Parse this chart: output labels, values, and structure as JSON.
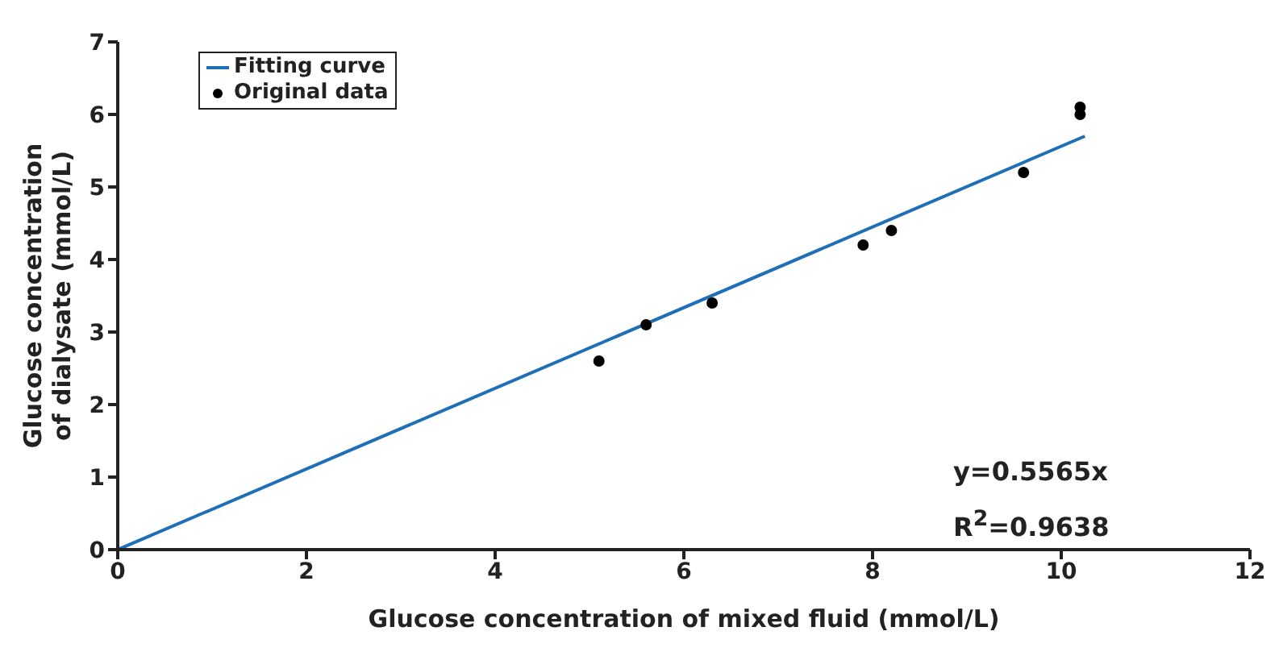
{
  "chart_data": {
    "type": "scatter",
    "xlabel": "Glucose concentration of mixed fluid (mmol/L)",
    "ylabel": "Glucose concentration of dialysate (mmol/L)",
    "xlim": [
      0,
      12
    ],
    "xticks": [
      0,
      2,
      4,
      6,
      8,
      10,
      12
    ],
    "ylim": [
      0,
      7
    ],
    "yticks": [
      0,
      1,
      2,
      3,
      4,
      5,
      6,
      7
    ],
    "series": [
      {
        "name": "Fitting curve",
        "type": "line",
        "color": "#1f6fb8",
        "x": [
          0,
          10.25
        ],
        "values": [
          0,
          5.7
        ],
        "marker": "none"
      },
      {
        "name": "Original data",
        "color": "#000000",
        "x": [
          5.1,
          5.6,
          6.3,
          7.9,
          8.2,
          9.6,
          10.2,
          10.2
        ],
        "values": [
          2.6,
          3.1,
          3.4,
          4.2,
          4.4,
          5.2,
          6.0,
          6.1
        ],
        "marker": "circle"
      }
    ],
    "annotations": [
      "y=0.5565x",
      "R$^{2}$=0.9638"
    ],
    "legend": "top left",
    "grid": false
  }
}
